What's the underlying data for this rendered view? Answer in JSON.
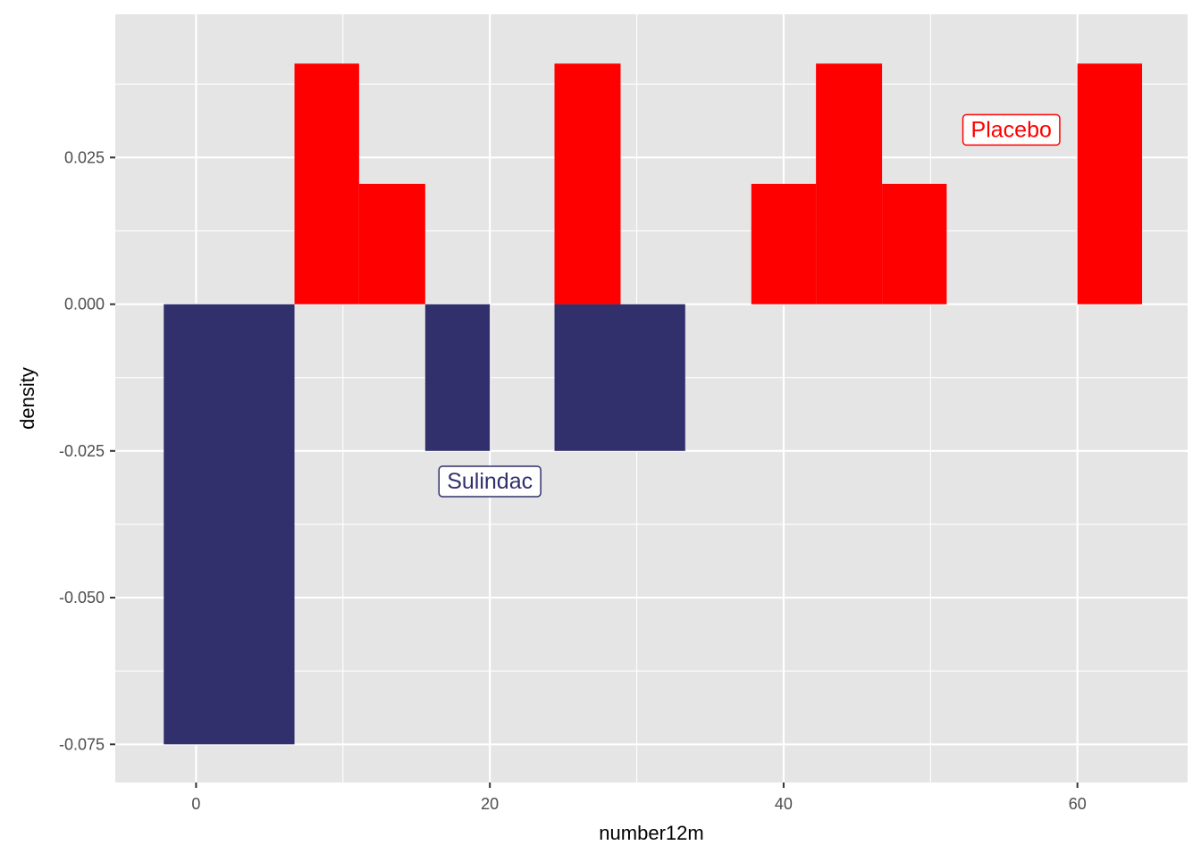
{
  "chart_data": {
    "type": "bar",
    "subtype": "mirrored-histogram",
    "xlabel": "number12m",
    "ylabel": "density",
    "xlim": [
      -5.5,
      67.5
    ],
    "ylim": [
      -0.0815,
      0.0494
    ],
    "x_ticks": [
      {
        "value": 0,
        "label": "0"
      },
      {
        "value": 20,
        "label": "20"
      },
      {
        "value": 40,
        "label": "40"
      },
      {
        "value": 60,
        "label": "60"
      }
    ],
    "y_ticks": [
      {
        "value": 0.025,
        "label": "0.025"
      },
      {
        "value": 0.0,
        "label": "0.000"
      },
      {
        "value": -0.025,
        "label": "-0.025"
      },
      {
        "value": -0.05,
        "label": "-0.050"
      },
      {
        "value": -0.075,
        "label": "-0.075"
      }
    ],
    "x_minor_gridlines": [
      10,
      30,
      50
    ],
    "y_minor_gridlines": [
      0.0375,
      0.0125,
      -0.0125,
      -0.0375,
      -0.0625
    ],
    "grid": true,
    "legend": "none",
    "colors": {
      "panel": "#E5E5E5",
      "grid": "#FFFFFF",
      "axis_text": "#4D4D4D",
      "title_text": "#000000"
    },
    "series": [
      {
        "name": "Placebo",
        "color": "#FF0000",
        "bins": [
          {
            "x0": 6.7,
            "x1": 11.1,
            "value": 0.041
          },
          {
            "x0": 11.1,
            "x1": 15.6,
            "value": 0.0205
          },
          {
            "x0": 24.4,
            "x1": 28.9,
            "value": 0.041
          },
          {
            "x0": 37.8,
            "x1": 42.2,
            "value": 0.0205
          },
          {
            "x0": 42.2,
            "x1": 46.7,
            "value": 0.041
          },
          {
            "x0": 46.7,
            "x1": 51.1,
            "value": 0.0205
          },
          {
            "x0": 60.0,
            "x1": 64.4,
            "value": 0.041
          }
        ]
      },
      {
        "name": "Sulindac",
        "color": "#31306C",
        "bins": [
          {
            "x0": -2.2,
            "x1": 6.7,
            "value": -0.075
          },
          {
            "x0": 15.6,
            "x1": 20.0,
            "value": -0.025
          },
          {
            "x0": 24.4,
            "x1": 33.3,
            "value": -0.025
          }
        ]
      }
    ],
    "annotations": [
      {
        "text": "Placebo",
        "x": 55.5,
        "y": 0.0297,
        "color": "#FF0000",
        "series": "Placebo"
      },
      {
        "text": "Sulindac",
        "x": 20.0,
        "y": -0.0302,
        "color": "#31306C",
        "series": "Sulindac"
      }
    ]
  }
}
